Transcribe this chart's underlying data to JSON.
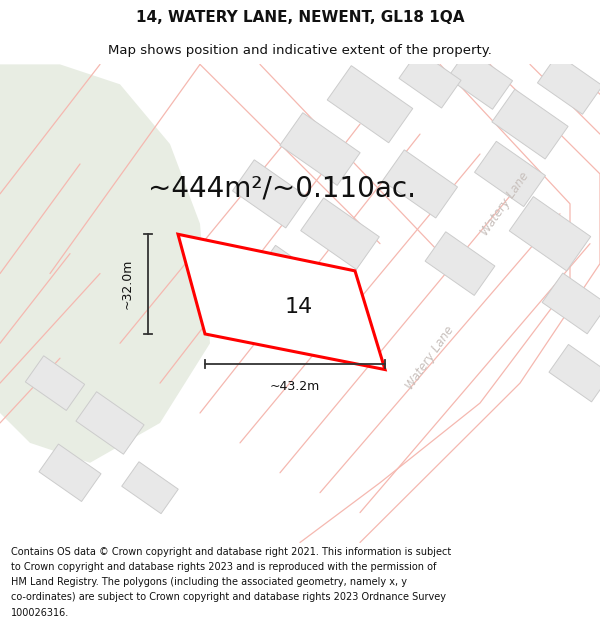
{
  "title_line1": "14, WATERY LANE, NEWENT, GL18 1QA",
  "title_line2": "Map shows position and indicative extent of the property.",
  "footer_lines": [
    "Contains OS data © Crown copyright and database right 2021. This information is subject",
    "to Crown copyright and database rights 2023 and is reproduced with the permission of",
    "HM Land Registry. The polygons (including the associated geometry, namely x, y",
    "co-ordinates) are subject to Crown copyright and database rights 2023 Ordnance Survey",
    "100026316."
  ],
  "area_label": "~444m²/~0.110ac.",
  "number_label": "14",
  "width_label": "~43.2m",
  "height_label": "~32.0m",
  "map_bg": "#f8f8f6",
  "green_color": "#e8ede3",
  "plot_fill": "#ffffff",
  "plot_edge": "#ff0000",
  "road_line_color": "#f5b8b0",
  "building_fill": "#e8e8e8",
  "building_edge": "#cccccc",
  "watery_lane_color": "#c8c0bc",
  "dim_line_color": "#333333",
  "title_fontsize": 11,
  "subtitle_fontsize": 9.5,
  "footer_fontsize": 7.0,
  "area_fontsize": 20,
  "number_fontsize": 16,
  "dim_fontsize": 9
}
